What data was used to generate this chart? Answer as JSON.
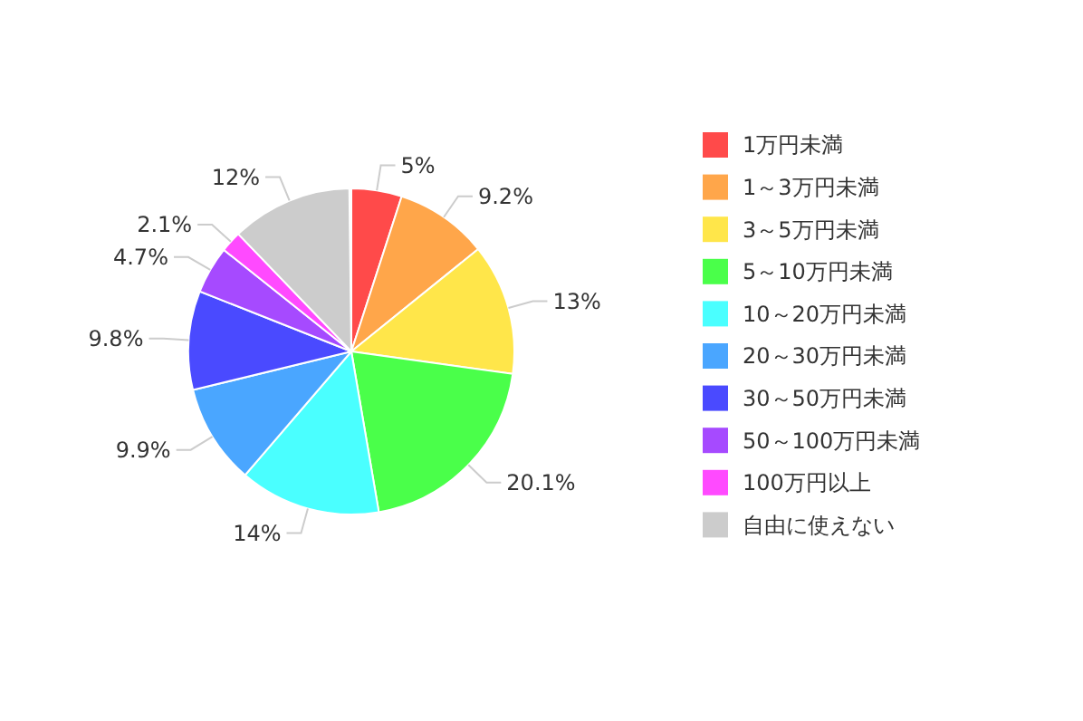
{
  "chart_data": {
    "type": "pie",
    "categories": [
      "1万円未満",
      "1～3万円未満",
      "3～5万円未満",
      "5～10万円未満",
      "10～20万円未満",
      "20～30万円未満",
      "30～50万円未満",
      "50～100万円未満",
      "100万円以上",
      "自由に使えない"
    ],
    "values": [
      5,
      9.2,
      13,
      20.1,
      14,
      9.9,
      9.8,
      4.7,
      2.1,
      12
    ],
    "colors": [
      "#ff4a4a",
      "#ffa64a",
      "#ffe64a",
      "#4aff4a",
      "#4affff",
      "#4aa6ff",
      "#4a4aff",
      "#a64aff",
      "#ff4aff",
      "#cccccc"
    ],
    "value_labels": [
      "5%",
      "9.2%",
      "13%",
      "20.1%",
      "14%",
      "9.9%",
      "9.8%",
      "4.7%",
      "2.1%",
      "12%"
    ],
    "legend": "right"
  }
}
